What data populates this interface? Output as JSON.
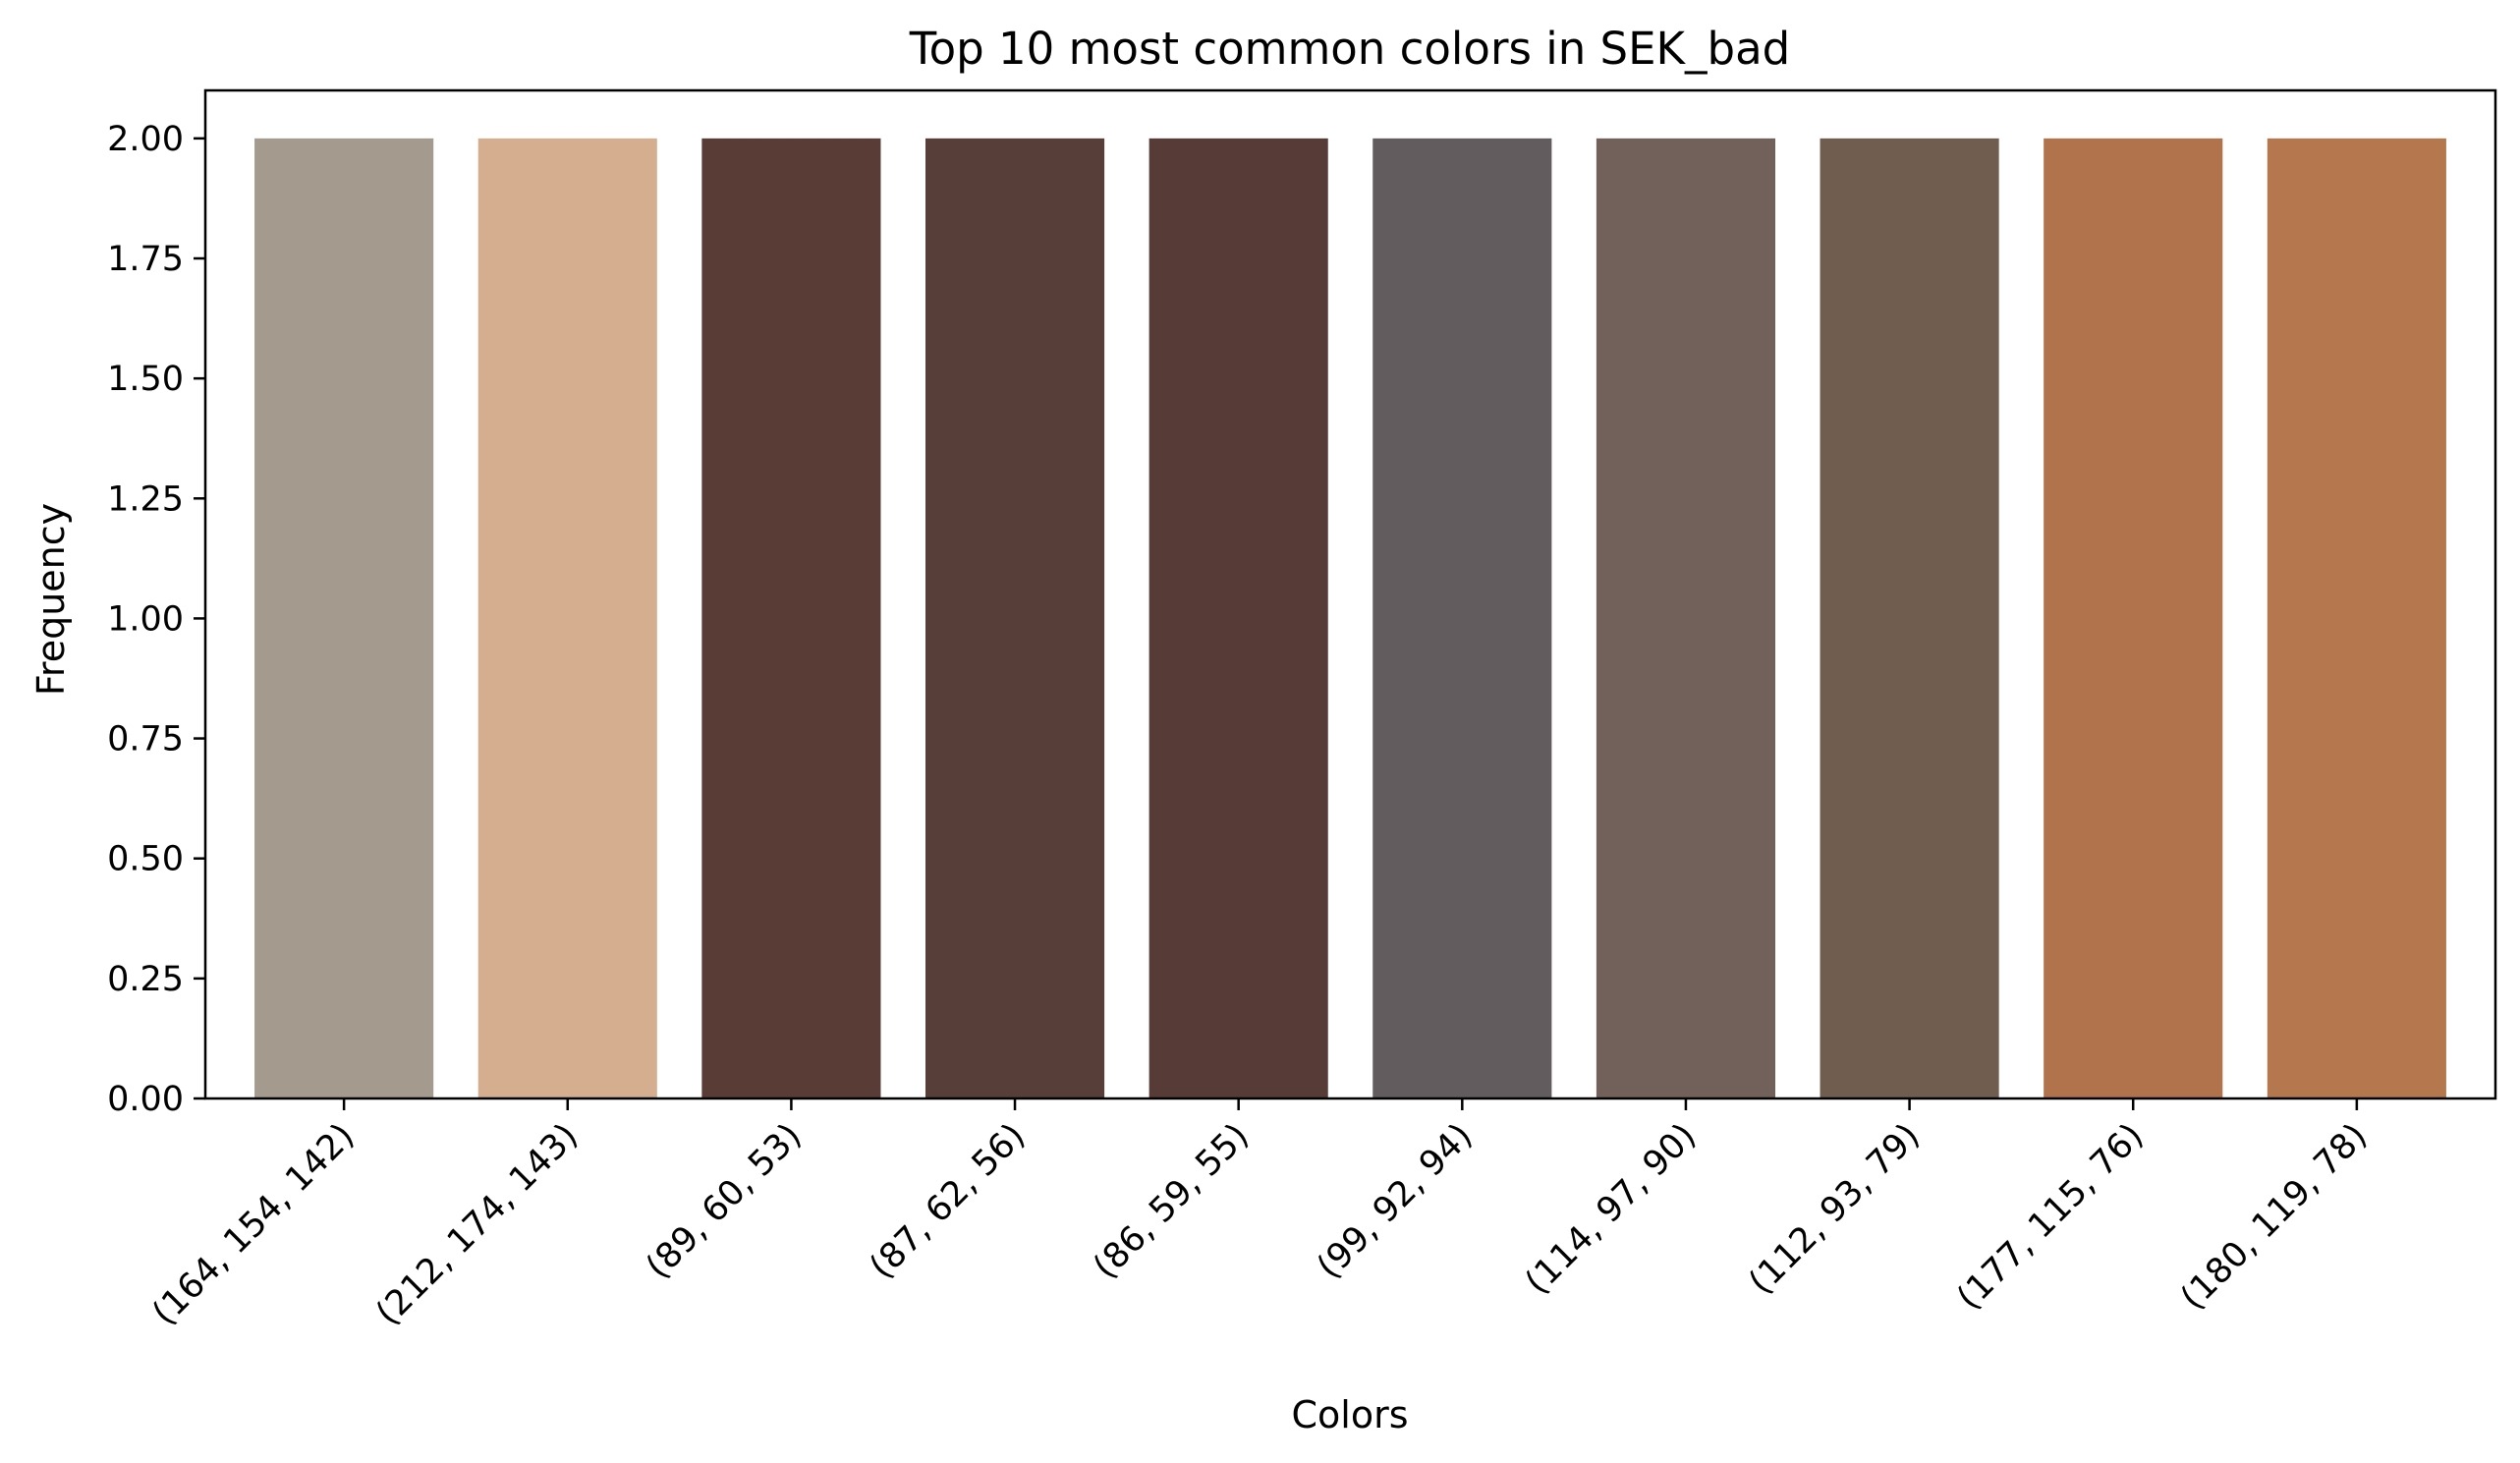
{
  "chart_data": {
    "type": "bar",
    "title": "Top 10 most common colors in SEK_bad",
    "xlabel": "Colors",
    "ylabel": "Frequency",
    "ylim": [
      0,
      2.1
    ],
    "yticks": [
      "0.00",
      "0.25",
      "0.50",
      "0.75",
      "1.00",
      "1.25",
      "1.50",
      "1.75",
      "2.00"
    ],
    "categories": [
      "(164, 154, 142)",
      "(212, 174, 143)",
      "(89, 60, 53)",
      "(87, 62, 56)",
      "(86, 59, 55)",
      "(99, 92, 94)",
      "(114, 97, 90)",
      "(112, 93, 79)",
      "(177, 115, 76)",
      "(180, 119, 78)"
    ],
    "values": [
      2,
      2,
      2,
      2,
      2,
      2,
      2,
      2,
      2,
      2
    ],
    "bar_colors": [
      "#a49a8e",
      "#d4ae8f",
      "#593c35",
      "#573e38",
      "#563b37",
      "#635c5e",
      "#72615a",
      "#705d4f",
      "#b1734c",
      "#b4774e"
    ],
    "grid": false,
    "legend": "none"
  }
}
